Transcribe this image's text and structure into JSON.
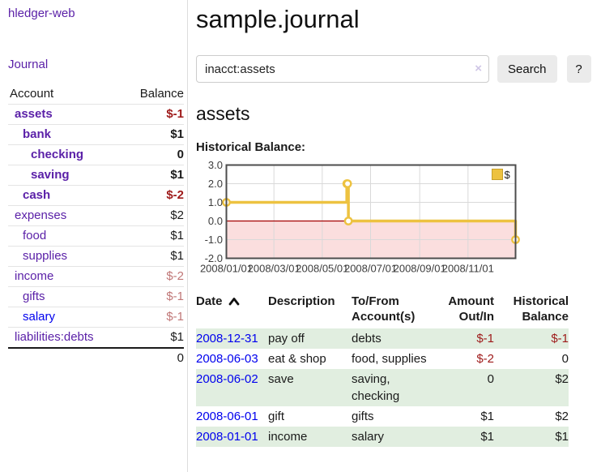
{
  "app": {
    "brand": "hledger-web",
    "nav_journal": "Journal"
  },
  "colors": {
    "link_purple": "#5b21a8",
    "link_blue": "#0000ee",
    "negative_strong": "#9e1a1a",
    "negative_muted": "#c07777",
    "row_stripe_green": "#e1eee0",
    "button_gray": "#ebebeb",
    "series_gold": "#edc240"
  },
  "sidebar": {
    "headers": {
      "account": "Account",
      "balance": "Balance"
    },
    "accounts": [
      {
        "label": "assets",
        "depth": 1,
        "bold": true,
        "link": "purple",
        "balance": "$-1",
        "balance_color": "neg-strong",
        "balance_bold": true
      },
      {
        "label": "bank",
        "depth": 2,
        "bold": true,
        "link": "purple",
        "balance": "$1",
        "balance_color": "normal",
        "balance_bold": true
      },
      {
        "label": "checking",
        "depth": 3,
        "bold": true,
        "link": "purple",
        "balance": "0",
        "balance_color": "normal",
        "balance_bold": true
      },
      {
        "label": "saving",
        "depth": 3,
        "bold": true,
        "link": "purple",
        "balance": "$1",
        "balance_color": "normal",
        "balance_bold": true
      },
      {
        "label": "cash",
        "depth": 2,
        "bold": true,
        "link": "purple",
        "balance": "$-2",
        "balance_color": "neg-strong",
        "balance_bold": true
      },
      {
        "label": "expenses",
        "depth": 1,
        "bold": false,
        "link": "purple",
        "balance": "$2",
        "balance_color": "normal",
        "balance_bold": false
      },
      {
        "label": "food",
        "depth": 2,
        "bold": false,
        "link": "purple",
        "balance": "$1",
        "balance_color": "normal",
        "balance_bold": false
      },
      {
        "label": "supplies",
        "depth": 2,
        "bold": false,
        "link": "purple",
        "balance": "$1",
        "balance_color": "normal",
        "balance_bold": false
      },
      {
        "label": "income",
        "depth": 1,
        "bold": false,
        "link": "purple",
        "balance": "$-2",
        "balance_color": "neg-muted",
        "balance_bold": false
      },
      {
        "label": "gifts",
        "depth": 2,
        "bold": false,
        "link": "purple",
        "balance": "$-1",
        "balance_color": "neg-muted",
        "balance_bold": false
      },
      {
        "label": "salary",
        "depth": 2,
        "bold": false,
        "link": "blue",
        "balance": "$-1",
        "balance_color": "neg-muted",
        "balance_bold": false
      },
      {
        "label": "liabilities:debts",
        "depth": 1,
        "bold": false,
        "link": "purple",
        "balance": "$1",
        "balance_color": "normal",
        "balance_bold": false
      }
    ],
    "total": "0"
  },
  "main": {
    "title": "sample.journal",
    "search": {
      "value": "inacct:assets",
      "clear_icon": "×",
      "button_label": "Search",
      "help_label": "?"
    },
    "account_heading": "assets",
    "chart_label": "Historical Balance:",
    "register": {
      "headers": {
        "date": "Date",
        "description": "Description",
        "accounts": "To/From Account(s)",
        "amount": "Amount Out/In",
        "balance": "Historical Balance"
      },
      "rows": [
        {
          "date": "2008-12-31",
          "description": "pay off",
          "accounts": "debts",
          "amount": "$-1",
          "amount_negative": true,
          "balance": "$-1",
          "balance_negative": true
        },
        {
          "date": "2008-06-03",
          "description": "eat & shop",
          "accounts": "food, supplies",
          "amount": "$-2",
          "amount_negative": true,
          "balance": "0",
          "balance_negative": false
        },
        {
          "date": "2008-06-02",
          "description": "save",
          "accounts": "saving, checking",
          "amount": "0",
          "amount_negative": false,
          "balance": "$2",
          "balance_negative": false
        },
        {
          "date": "2008-06-01",
          "description": "gift",
          "accounts": "gifts",
          "amount": "$1",
          "amount_negative": false,
          "balance": "$2",
          "balance_negative": false
        },
        {
          "date": "2008-01-01",
          "description": "income",
          "accounts": "salary",
          "amount": "$1",
          "amount_negative": false,
          "balance": "$1",
          "balance_negative": false
        }
      ]
    }
  },
  "chart_data": {
    "type": "line",
    "step": true,
    "title": "Historical Balance",
    "xlabel": "",
    "ylabel": "",
    "xlim": [
      "2008-01-01",
      "2008-12-31"
    ],
    "ylim": [
      -2,
      3
    ],
    "yticks": [
      3,
      2,
      1,
      0,
      -1,
      -2
    ],
    "xticks": [
      "2008/01/01",
      "2008/03/01",
      "2008/05/01",
      "2008/07/01",
      "2008/09/01",
      "2008/11/01"
    ],
    "series": [
      {
        "name": "$",
        "color": "#edc240",
        "points": [
          [
            "2008-01-01",
            1
          ],
          [
            "2008-06-01",
            2
          ],
          [
            "2008-06-02",
            2
          ],
          [
            "2008-06-03",
            0
          ],
          [
            "2008-12-31",
            -1
          ]
        ]
      }
    ],
    "legend": {
      "label": "$",
      "position": "top-right"
    },
    "grid": true,
    "negative_region_color": "#fbdede",
    "zero_line_color": "#a40000",
    "grid_color": "#d9d9d9",
    "border_color": "#4d4d4d",
    "legend_box_border": "#c7a02c",
    "tick_color": "#3c3c3c"
  }
}
